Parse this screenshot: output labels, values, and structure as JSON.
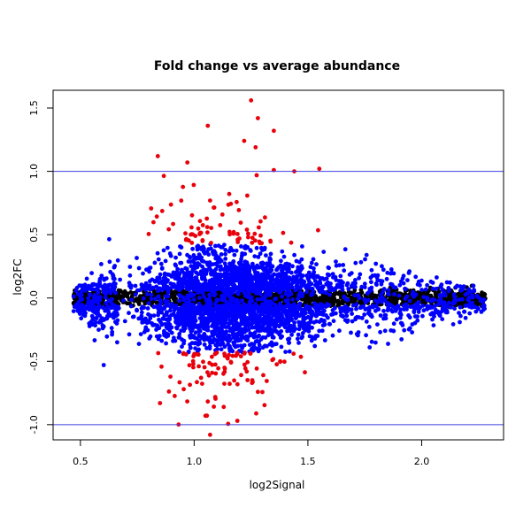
{
  "chart_data": {
    "type": "scatter",
    "title": "Fold change vs average abundance",
    "xlabel": "log2Signal",
    "ylabel": "log2FC",
    "xlim": [
      0.38,
      2.36
    ],
    "ylim": [
      -1.12,
      1.64
    ],
    "xticks": [
      0.5,
      1.0,
      1.5,
      2.0
    ],
    "xtick_labels": [
      "0.5",
      "1.0",
      "1.5",
      "2.0"
    ],
    "yticks": [
      -1.0,
      -0.5,
      0.0,
      0.5,
      1.0,
      1.5
    ],
    "ytick_labels": [
      "-1.0",
      "-0.5",
      "0.0",
      "0.5",
      "1.0",
      "1.5"
    ],
    "hlines": [
      {
        "y": 1.0,
        "color": "#3f3fe0"
      },
      {
        "y": -1.0,
        "color": "#3f3fe0"
      }
    ],
    "colors": {
      "black": "#000000",
      "blue": "#0000ff",
      "red": "#e8000b"
    },
    "grid": false,
    "legend": "none",
    "highlighted_points": [
      {
        "x": 1.25,
        "y": 1.56,
        "color": "red"
      },
      {
        "x": 1.28,
        "y": 1.42,
        "color": "red"
      },
      {
        "x": 1.06,
        "y": 1.36,
        "color": "red"
      },
      {
        "x": 1.35,
        "y": 1.32,
        "color": "red"
      },
      {
        "x": 0.84,
        "y": 1.12,
        "color": "red"
      },
      {
        "x": 1.22,
        "y": 1.24,
        "color": "red"
      },
      {
        "x": 1.27,
        "y": 1.19,
        "color": "red"
      },
      {
        "x": 1.55,
        "y": 1.02,
        "color": "red"
      },
      {
        "x": 1.44,
        "y": 1.0,
        "color": "red"
      },
      {
        "x": 1.35,
        "y": 1.01,
        "color": "red"
      },
      {
        "x": 0.97,
        "y": 1.07,
        "color": "red"
      },
      {
        "x": 1.07,
        "y": -1.08,
        "color": "red"
      },
      {
        "x": 1.19,
        "y": -0.97,
        "color": "red"
      },
      {
        "x": 1.05,
        "y": -0.93,
        "color": "red"
      },
      {
        "x": 0.85,
        "y": -0.83,
        "color": "red"
      },
      {
        "x": 1.13,
        "y": -0.86,
        "color": "red"
      }
    ]
  }
}
